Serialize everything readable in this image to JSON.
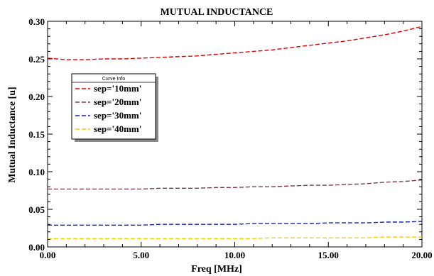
{
  "chart_data": {
    "type": "line",
    "title": "MUTUAL INDUCTANCE",
    "xlabel": "Freq [MHz]",
    "ylabel": "Mutual Inductance [u]",
    "xlim": [
      0,
      20
    ],
    "ylim": [
      0,
      0.3
    ],
    "x_ticks": [
      0,
      5,
      10,
      15,
      20
    ],
    "x_tick_labels": [
      "0.00",
      "5.00",
      "10.00",
      "15.00",
      "20.00"
    ],
    "y_ticks": [
      0,
      0.05,
      0.1,
      0.15,
      0.2,
      0.25,
      0.3
    ],
    "y_tick_labels": [
      "0.00",
      "0.05",
      "0.10",
      "0.15",
      "0.20",
      "0.25",
      "0.30"
    ],
    "grid": false,
    "legend_title": "Curve Info",
    "legend_placement": "upper-left",
    "x": [
      0,
      1,
      2,
      3,
      4,
      5,
      6,
      7,
      8,
      9,
      10,
      11,
      12,
      13,
      14,
      15,
      16,
      17,
      18,
      19,
      20
    ],
    "series": [
      {
        "name": "sep='10mm'",
        "color": "#e00000",
        "values": [
          0.251,
          0.249,
          0.249,
          0.25,
          0.25,
          0.251,
          0.252,
          0.253,
          0.254,
          0.256,
          0.258,
          0.26,
          0.262,
          0.265,
          0.268,
          0.271,
          0.274,
          0.278,
          0.282,
          0.287,
          0.293
        ]
      },
      {
        "name": "sep='20mm'",
        "color": "#7a3a4a",
        "values": [
          0.077,
          0.077,
          0.077,
          0.077,
          0.077,
          0.077,
          0.078,
          0.078,
          0.078,
          0.079,
          0.079,
          0.08,
          0.08,
          0.081,
          0.082,
          0.082,
          0.083,
          0.084,
          0.086,
          0.087,
          0.089
        ]
      },
      {
        "name": "sep='30mm'",
        "color": "#1020c0",
        "values": [
          0.029,
          0.029,
          0.029,
          0.029,
          0.029,
          0.029,
          0.03,
          0.03,
          0.03,
          0.03,
          0.03,
          0.031,
          0.031,
          0.031,
          0.031,
          0.032,
          0.032,
          0.032,
          0.033,
          0.033,
          0.034
        ]
      },
      {
        "name": "sep='40mm'",
        "color": "#f0d000",
        "values": [
          0.011,
          0.011,
          0.011,
          0.011,
          0.011,
          0.011,
          0.011,
          0.011,
          0.011,
          0.011,
          0.011,
          0.011,
          0.012,
          0.012,
          0.012,
          0.012,
          0.012,
          0.012,
          0.013,
          0.013,
          0.013
        ]
      }
    ]
  }
}
